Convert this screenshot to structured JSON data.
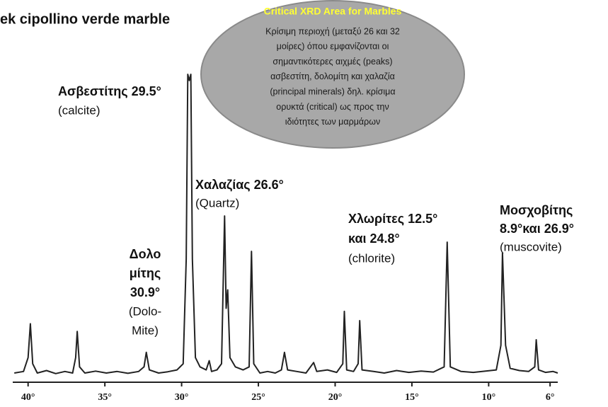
{
  "chart_data": {
    "type": "line",
    "title": "ek cipollino verde marble",
    "callout": {
      "title": "Critical  XRD Area for Marbles",
      "lines": [
        "Κρίσιμη περιοχή  (μεταξύ 26 και 32",
        "μοίρες) όπου εμφανίζονται οι",
        "σημαντικότερες αιχμές (peaks)",
        "ασβεστίτη, δολομίτη και χαλαζία",
        "(principal minerals)  δηλ. κρίσιμα",
        "ορυκτά (critical) ως προς την",
        "ιδιότητες των μαρμάρων"
      ]
    },
    "annotations": [
      {
        "bold": [
          "Ασβεστίτης 29.5°"
        ],
        "normal": [
          "(calcite)"
        ]
      },
      {
        "bold": [
          "Χαλαζίας 26.6°"
        ],
        "normal": [
          "(Quartz)"
        ]
      },
      {
        "bold": [
          "Δολο",
          "μίτης",
          "30.9°"
        ],
        "normal": [
          "(Dolo-",
          "Mite)"
        ]
      },
      {
        "bold": [
          "Χλωρίτες 12.5°",
          "και 24.8°"
        ],
        "normal": [
          "(chlorite)"
        ]
      },
      {
        "bold": [
          "Μοσχοβίτης",
          "8.9°και 26.9°"
        ],
        "normal": [
          "(muscovite)"
        ]
      }
    ],
    "x": [
      40.9,
      40.3,
      40.0,
      39.85,
      39.7,
      39.4,
      38.8,
      38.2,
      37.6,
      37.1,
      36.9,
      36.8,
      36.65,
      36.3,
      35.6,
      34.9,
      34.2,
      33.5,
      32.8,
      32.45,
      32.3,
      32.1,
      31.5,
      30.9,
      30.3,
      29.9,
      29.7,
      29.6,
      29.5,
      29.4,
      29.3,
      29.1,
      28.8,
      28.4,
      28.2,
      28.05,
      27.7,
      27.4,
      27.2,
      27.1,
      27.0,
      26.85,
      26.5,
      26.0,
      25.6,
      25.45,
      25.3,
      24.9,
      24.4,
      23.9,
      23.5,
      23.3,
      23.1,
      22.5,
      21.9,
      21.4,
      21.2,
      20.5,
      19.9,
      19.5,
      19.4,
      19.25,
      18.8,
      18.5,
      18.4,
      18.25,
      17.5,
      16.8,
      16.0,
      15.2,
      14.4,
      13.6,
      12.9,
      12.7,
      12.5,
      11.8,
      11.0,
      10.2,
      9.5,
      9.2,
      9.1,
      8.9,
      8.6,
      8.0,
      7.4,
      7.0,
      6.9,
      6.75,
      6.3,
      5.8,
      5.5
    ],
    "series": [
      {
        "color": "#222222",
        "values": [
          3,
          3.5,
          8,
          19,
          6,
          3,
          3.8,
          2.8,
          3.5,
          3,
          8,
          16.5,
          5,
          3,
          3.6,
          3,
          3.5,
          2.9,
          3.5,
          5,
          9.7,
          4,
          3,
          3.4,
          4,
          6,
          40,
          100,
          98,
          100,
          40,
          8,
          5,
          4,
          7,
          3.5,
          4,
          6,
          54,
          24,
          30,
          8,
          5,
          4,
          5,
          42.5,
          6,
          3,
          3.5,
          3,
          4,
          9.7,
          4,
          3.5,
          3,
          6.4,
          3.5,
          4,
          3.2,
          6,
          23,
          4,
          3.5,
          6,
          20,
          4,
          3.5,
          3,
          3.8,
          3.2,
          3.6,
          3.3,
          5,
          45.5,
          5,
          3.5,
          3.2,
          3.6,
          4,
          12,
          42,
          12,
          4.5,
          3.8,
          3.5,
          5,
          13.8,
          4,
          3.2,
          3.5,
          3
        ]
      }
    ],
    "xlim": [
      41,
      5.5
    ],
    "ylim": [
      0,
      100
    ],
    "xticks": [
      {
        "value": 40,
        "label": "40°"
      },
      {
        "value": 35,
        "label": "35°"
      },
      {
        "value": 30,
        "label": "30°"
      },
      {
        "value": 25,
        "label": "25°"
      },
      {
        "value": 20,
        "label": "20°"
      },
      {
        "value": 15,
        "label": "15°"
      },
      {
        "value": 10,
        "label": "10°"
      },
      {
        "value": 6,
        "label": "6°"
      }
    ]
  }
}
